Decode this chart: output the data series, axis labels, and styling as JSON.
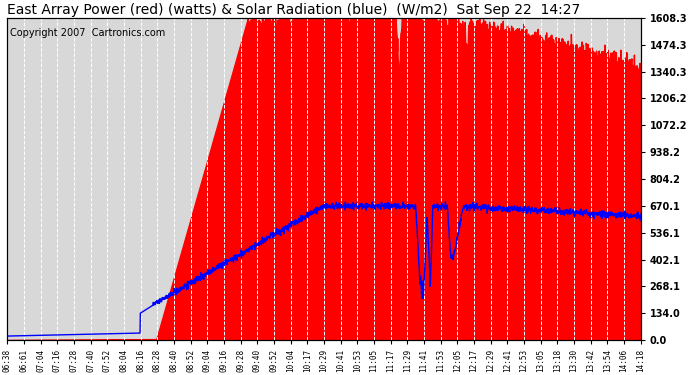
{
  "title": "East Array Power (red) (watts) & Solar Radiation (blue)  (W/m2)  Sat Sep 22  14:27",
  "copyright": "Copyright 2007  Cartronics.com",
  "ylabel_right_ticks": [
    0.0,
    134.0,
    268.1,
    402.1,
    536.1,
    670.1,
    804.2,
    938.2,
    1072.2,
    1206.2,
    1340.3,
    1474.3,
    1608.3
  ],
  "ymax": 1608.3,
  "ymin": 0.0,
  "x_labels": [
    "06:38",
    "06:61",
    "07:04",
    "07:16",
    "07:28",
    "07:40",
    "07:52",
    "08:04",
    "08:16",
    "08:28",
    "08:40",
    "08:52",
    "09:04",
    "09:16",
    "09:28",
    "09:40",
    "09:52",
    "10:04",
    "10:17",
    "10:29",
    "10:41",
    "10:53",
    "11:05",
    "11:17",
    "11:29",
    "11:41",
    "11:53",
    "12:05",
    "12:17",
    "12:29",
    "12:41",
    "12:53",
    "13:05",
    "13:18",
    "13:30",
    "13:42",
    "13:54",
    "14:06",
    "14:18"
  ],
  "background_color": "#ffffff",
  "plot_bg_color": "#d8d8d8",
  "grid_color": "#ffffff",
  "red_fill_color": "#ff0000",
  "blue_line_color": "#0000ff",
  "title_fontsize": 10,
  "copyright_fontsize": 7
}
